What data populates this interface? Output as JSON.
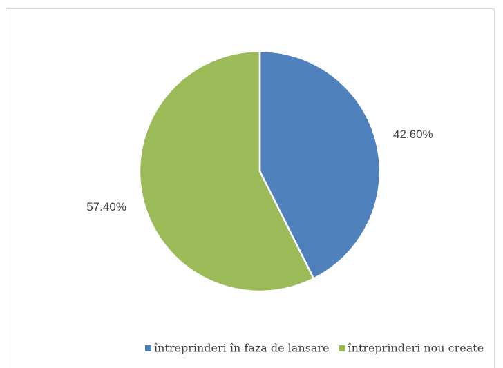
{
  "chart_data": {
    "type": "pie",
    "categories": [
      "întreprinderi în faza de lansare",
      "întreprinderi nou create"
    ],
    "values": [
      42.6,
      57.4
    ],
    "value_labels": [
      "42.60%",
      "57.40%"
    ],
    "colors": [
      "#4f81bd",
      "#9bbb59"
    ],
    "legend": "bottom"
  }
}
